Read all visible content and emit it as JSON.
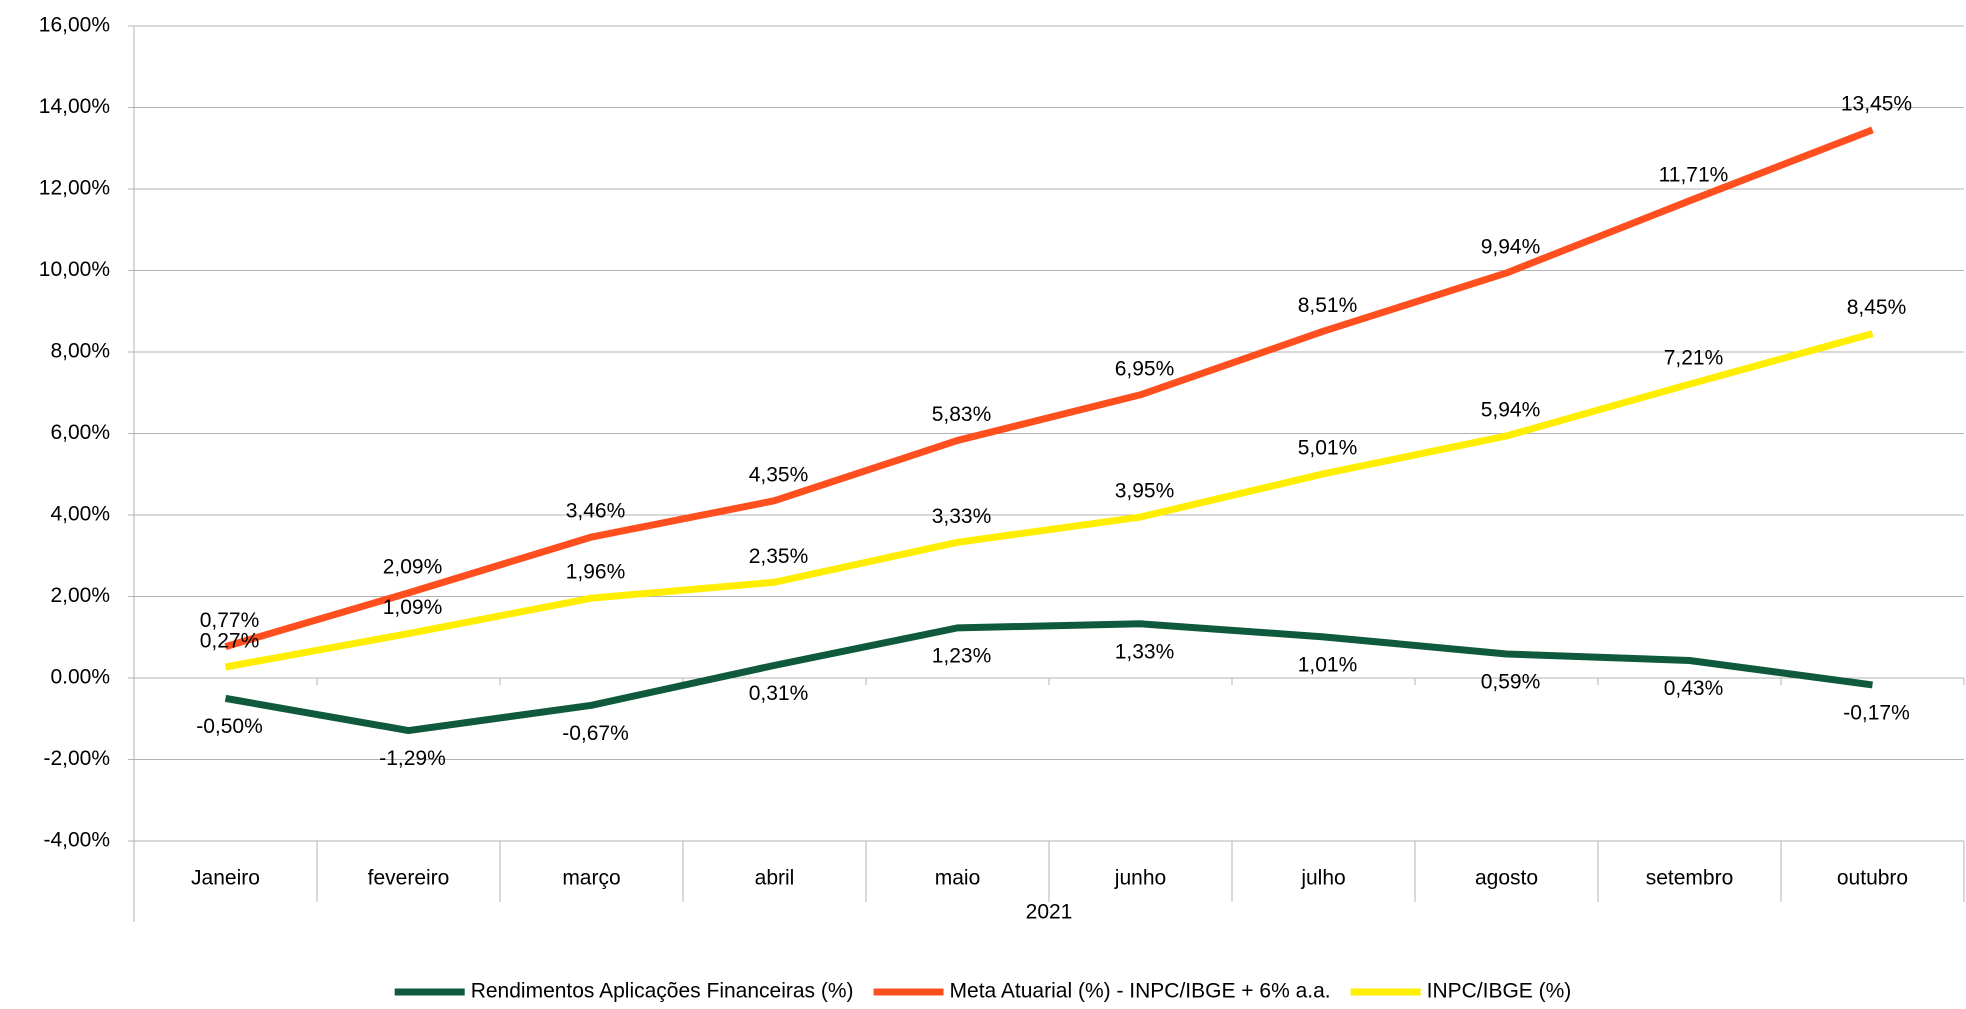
{
  "chart_data": {
    "type": "line",
    "xlabel": "2021",
    "categories": [
      "Janeiro",
      "fevereiro",
      "março",
      "abril",
      "maio",
      "junho",
      "julho",
      "agosto",
      "setembro",
      "outubro"
    ],
    "series": [
      {
        "name": "Rendimentos Aplicações Financeiras (%)",
        "color": "#0f5a3c",
        "values": [
          -0.5,
          -1.29,
          -0.67,
          0.31,
          1.23,
          1.33,
          1.01,
          0.59,
          0.43,
          -0.17
        ],
        "value_labels": [
          "-0,50%",
          "-1,29%",
          "-0,67%",
          "0,31%",
          "1,23%",
          "1,33%",
          "1,01%",
          "0,59%",
          "0,43%",
          "-0,17%"
        ]
      },
      {
        "name": "Meta Atuarial (%) - INPC/IBGE + 6% a.a.",
        "color": "#ff4f1f",
        "values": [
          0.77,
          2.09,
          3.46,
          4.35,
          5.83,
          6.95,
          8.51,
          9.94,
          11.71,
          13.45
        ],
        "value_labels": [
          "0,77%",
          "2,09%",
          "3,46%",
          "4,35%",
          "5,83%",
          "6,95%",
          "8,51%",
          "9,94%",
          "11,71%",
          "13,45%"
        ]
      },
      {
        "name": "INPC/IBGE (%)",
        "color": "#ffee00",
        "values": [
          0.27,
          1.09,
          1.96,
          2.35,
          3.33,
          3.95,
          5.01,
          5.94,
          7.21,
          8.45
        ],
        "value_labels": [
          "0,27%",
          "1,09%",
          "1,96%",
          "2,35%",
          "3,33%",
          "3,95%",
          "5,01%",
          "5,94%",
          "7,21%",
          "8,45%"
        ]
      }
    ],
    "ylim": [
      -4,
      16
    ],
    "yticks": [
      {
        "value": -4,
        "label": "-4,00%"
      },
      {
        "value": -2,
        "label": "-2,00%"
      },
      {
        "value": 0,
        "label": "0.00%"
      },
      {
        "value": 2,
        "label": "2,00%"
      },
      {
        "value": 4,
        "label": "4,00%"
      },
      {
        "value": 6,
        "label": "6,00%"
      },
      {
        "value": 8,
        "label": "8,00%"
      },
      {
        "value": 10,
        "label": "10,00%"
      },
      {
        "value": 12,
        "label": "12,00%"
      },
      {
        "value": 14,
        "label": "14,00%"
      },
      {
        "value": 16,
        "label": "16,00%"
      }
    ],
    "grid": true
  }
}
